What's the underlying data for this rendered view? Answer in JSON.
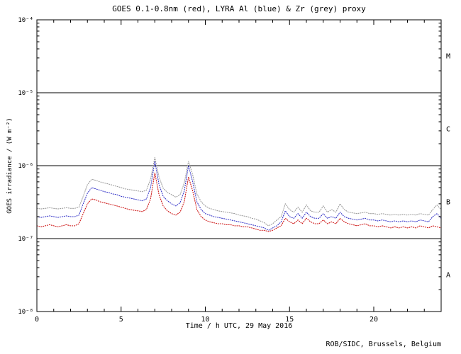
{
  "page": {
    "credit": "ROB/SIDC, Brussels, Belgium"
  },
  "chart_data": {
    "type": "line",
    "title": "GOES 0.1-0.8nm (red), LYRA Al (blue) & Zr (grey) proxy",
    "xlabel": "Time / h UTC, 29 May 2016",
    "ylabel": "GOES irradiance / (W m⁻²)",
    "xlim": [
      0,
      24
    ],
    "ylim": [
      1e-08,
      0.0001
    ],
    "y_scale": "log",
    "grid": "off",
    "legend": "in-title",
    "xtick_values": [
      0,
      5,
      10,
      15,
      20
    ],
    "xtick_labels": [
      "0",
      "5",
      "10",
      "15",
      "20"
    ],
    "xtick_minor_step": 1,
    "ytick_exponents": [
      -8,
      -7,
      -6,
      -5,
      -4
    ],
    "ytick_labels": [
      "10⁻⁸",
      "10⁻⁷",
      "10⁻⁶",
      "10⁻⁵",
      "10⁻⁴"
    ],
    "class_boundaries": [
      1e-07,
      1e-06,
      1e-05
    ],
    "flare_classes": [
      {
        "label": "A",
        "midpoint_exponent": -7.5
      },
      {
        "label": "B",
        "midpoint_exponent": -6.5
      },
      {
        "label": "C",
        "midpoint_exponent": -5.5
      },
      {
        "label": "M",
        "midpoint_exponent": -4.5
      }
    ],
    "x_start": 0,
    "x_step": 0.25,
    "series": [
      {
        "name": "LYRA Zr proxy",
        "color": "#9a9a9a",
        "values": [
          2.6e-07,
          2.55e-07,
          2.6e-07,
          2.65e-07,
          2.6e-07,
          2.55e-07,
          2.6e-07,
          2.65e-07,
          2.6e-07,
          2.6e-07,
          2.7e-07,
          3.8e-07,
          5.5e-07,
          6.5e-07,
          6.3e-07,
          6e-07,
          5.8e-07,
          5.6e-07,
          5.4e-07,
          5.2e-07,
          5e-07,
          4.8e-07,
          4.7e-07,
          4.6e-07,
          4.5e-07,
          4.4e-07,
          4.6e-07,
          6.5e-07,
          1.3e-06,
          7e-07,
          4.9e-07,
          4.3e-07,
          4e-07,
          3.7e-07,
          4e-07,
          5.8e-07,
          1.15e-06,
          7.5e-07,
          4.1e-07,
          3.2e-07,
          2.8e-07,
          2.6e-07,
          2.5e-07,
          2.4e-07,
          2.35e-07,
          2.3e-07,
          2.25e-07,
          2.2e-07,
          2.1e-07,
          2.05e-07,
          2e-07,
          1.9e-07,
          1.85e-07,
          1.75e-07,
          1.65e-07,
          1.5e-07,
          1.6e-07,
          1.8e-07,
          2e-07,
          3e-07,
          2.5e-07,
          2.3e-07,
          2.7e-07,
          2.3e-07,
          2.9e-07,
          2.4e-07,
          2.3e-07,
          2.3e-07,
          2.8e-07,
          2.3e-07,
          2.5e-07,
          2.3e-07,
          3e-07,
          2.5e-07,
          2.3e-07,
          2.25e-07,
          2.2e-07,
          2.25e-07,
          2.3e-07,
          2.2e-07,
          2.2e-07,
          2.15e-07,
          2.2e-07,
          2.15e-07,
          2.1e-07,
          2.15e-07,
          2.1e-07,
          2.15e-07,
          2.1e-07,
          2.15e-07,
          2.1e-07,
          2.2e-07,
          2.15e-07,
          2.1e-07,
          2.5e-07,
          2.9e-07,
          2.5e-07
        ]
      },
      {
        "name": "LYRA Al proxy",
        "color": "#3535c8",
        "values": [
          2e-07,
          1.95e-07,
          2e-07,
          2.05e-07,
          2e-07,
          1.95e-07,
          2e-07,
          2.05e-07,
          2e-07,
          2e-07,
          2.1e-07,
          3e-07,
          4.2e-07,
          5e-07,
          4.8e-07,
          4.6e-07,
          4.4e-07,
          4.3e-07,
          4.1e-07,
          4e-07,
          3.8e-07,
          3.7e-07,
          3.6e-07,
          3.5e-07,
          3.4e-07,
          3.3e-07,
          3.5e-07,
          5e-07,
          1.15e-06,
          5.5e-07,
          3.8e-07,
          3.3e-07,
          3e-07,
          2.8e-07,
          3.1e-07,
          4.5e-07,
          1e-06,
          6e-07,
          3.2e-07,
          2.5e-07,
          2.2e-07,
          2.1e-07,
          2e-07,
          1.95e-07,
          1.9e-07,
          1.85e-07,
          1.8e-07,
          1.75e-07,
          1.7e-07,
          1.65e-07,
          1.6e-07,
          1.55e-07,
          1.5e-07,
          1.45e-07,
          1.4e-07,
          1.3e-07,
          1.4e-07,
          1.5e-07,
          1.7e-07,
          2.4e-07,
          2e-07,
          1.9e-07,
          2.2e-07,
          1.9e-07,
          2.3e-07,
          2e-07,
          1.9e-07,
          1.9e-07,
          2.2e-07,
          1.9e-07,
          2e-07,
          1.9e-07,
          2.3e-07,
          2e-07,
          1.9e-07,
          1.85e-07,
          1.8e-07,
          1.85e-07,
          1.9e-07,
          1.8e-07,
          1.8e-07,
          1.75e-07,
          1.8e-07,
          1.75e-07,
          1.7e-07,
          1.75e-07,
          1.7e-07,
          1.75e-07,
          1.7e-07,
          1.75e-07,
          1.7e-07,
          1.8e-07,
          1.75e-07,
          1.7e-07,
          2e-07,
          2.2e-07,
          1.9e-07
        ]
      },
      {
        "name": "GOES 0.1-0.8nm",
        "color": "#cc1111",
        "values": [
          1.5e-07,
          1.45e-07,
          1.5e-07,
          1.55e-07,
          1.5e-07,
          1.45e-07,
          1.5e-07,
          1.55e-07,
          1.5e-07,
          1.5e-07,
          1.6e-07,
          2.2e-07,
          3e-07,
          3.5e-07,
          3.4e-07,
          3.2e-07,
          3.1e-07,
          3e-07,
          2.9e-07,
          2.8e-07,
          2.7e-07,
          2.6e-07,
          2.5e-07,
          2.45e-07,
          2.4e-07,
          2.35e-07,
          2.5e-07,
          3.5e-07,
          8e-07,
          4e-07,
          2.8e-07,
          2.4e-07,
          2.2e-07,
          2.1e-07,
          2.3e-07,
          3.2e-07,
          7e-07,
          4.5e-07,
          2.5e-07,
          2e-07,
          1.8e-07,
          1.7e-07,
          1.65e-07,
          1.6e-07,
          1.6e-07,
          1.55e-07,
          1.55e-07,
          1.5e-07,
          1.5e-07,
          1.45e-07,
          1.45e-07,
          1.4e-07,
          1.35e-07,
          1.3e-07,
          1.3e-07,
          1.25e-07,
          1.3e-07,
          1.4e-07,
          1.5e-07,
          1.9e-07,
          1.7e-07,
          1.6e-07,
          1.8e-07,
          1.6e-07,
          1.9e-07,
          1.7e-07,
          1.6e-07,
          1.6e-07,
          1.8e-07,
          1.6e-07,
          1.7e-07,
          1.6e-07,
          1.9e-07,
          1.7e-07,
          1.6e-07,
          1.55e-07,
          1.5e-07,
          1.55e-07,
          1.6e-07,
          1.5e-07,
          1.5e-07,
          1.45e-07,
          1.5e-07,
          1.45e-07,
          1.4e-07,
          1.45e-07,
          1.4e-07,
          1.45e-07,
          1.4e-07,
          1.45e-07,
          1.4e-07,
          1.5e-07,
          1.45e-07,
          1.4e-07,
          1.5e-07,
          1.45e-07,
          1.4e-07
        ]
      }
    ]
  }
}
